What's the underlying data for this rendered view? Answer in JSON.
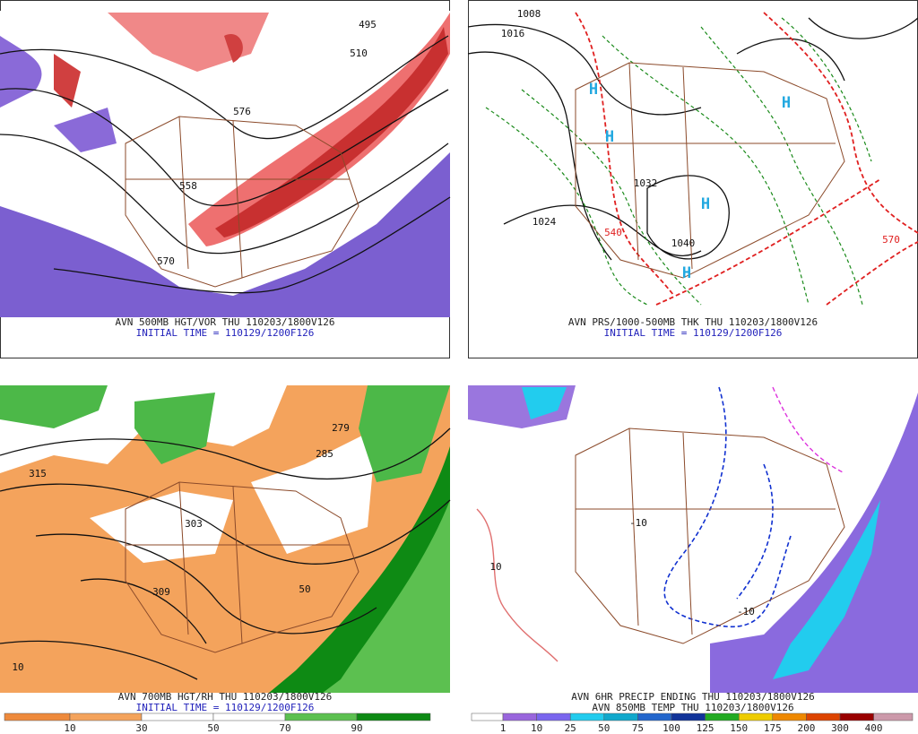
{
  "panels": [
    {
      "caption": "AVN 500MB HGT/VOR THU 110203/1800V126",
      "initial": "INITIAL TIME = 110129/1200F126",
      "labels": [
        "495",
        "510",
        "576",
        "558",
        "570"
      ]
    },
    {
      "caption": "AVN PRS/1000-500MB THK THU 110203/1800V126",
      "initial": "INITIAL TIME = 110129/1200F126",
      "labels": [
        "1008",
        "1016",
        "1032",
        "1024",
        "1040",
        "570",
        "540",
        "H",
        "H",
        "H",
        "H",
        "H"
      ]
    },
    {
      "caption": "AVN 700MB HGT/RH THU 110203/1800V126",
      "initial": "INITIAL TIME = 110129/1200F126",
      "labels": [
        "279",
        "285",
        "303",
        "309",
        "315",
        "10",
        "50"
      ],
      "colorbar": {
        "labels": [
          "10",
          "30",
          "50",
          "70",
          "90"
        ],
        "colors": [
          "#ee8a3c",
          "#f4a35c",
          "#ffffff",
          "#ffffff",
          "#5cc050",
          "#0e8a14"
        ]
      }
    },
    {
      "caption": "AVN 6HR PRECIP ENDING THU 110203/1800V126",
      "initial": "AVN 850MB TEMP THU 110203/1800V126",
      "labels": [
        "-10",
        "-10",
        "10"
      ],
      "colorbar": {
        "labels": [
          "1",
          "10",
          "25",
          "50",
          "75",
          "100",
          "125",
          "150",
          "175",
          "200",
          "300",
          "400"
        ],
        "colors": [
          "#ffffff",
          "#9966dd",
          "#7a66ee",
          "#22ccee",
          "#11a8cc",
          "#2266cc",
          "#113399",
          "#22aa22",
          "#eecc00",
          "#ee8800",
          "#dd4400",
          "#990000",
          "#cc99aa"
        ]
      }
    }
  ]
}
